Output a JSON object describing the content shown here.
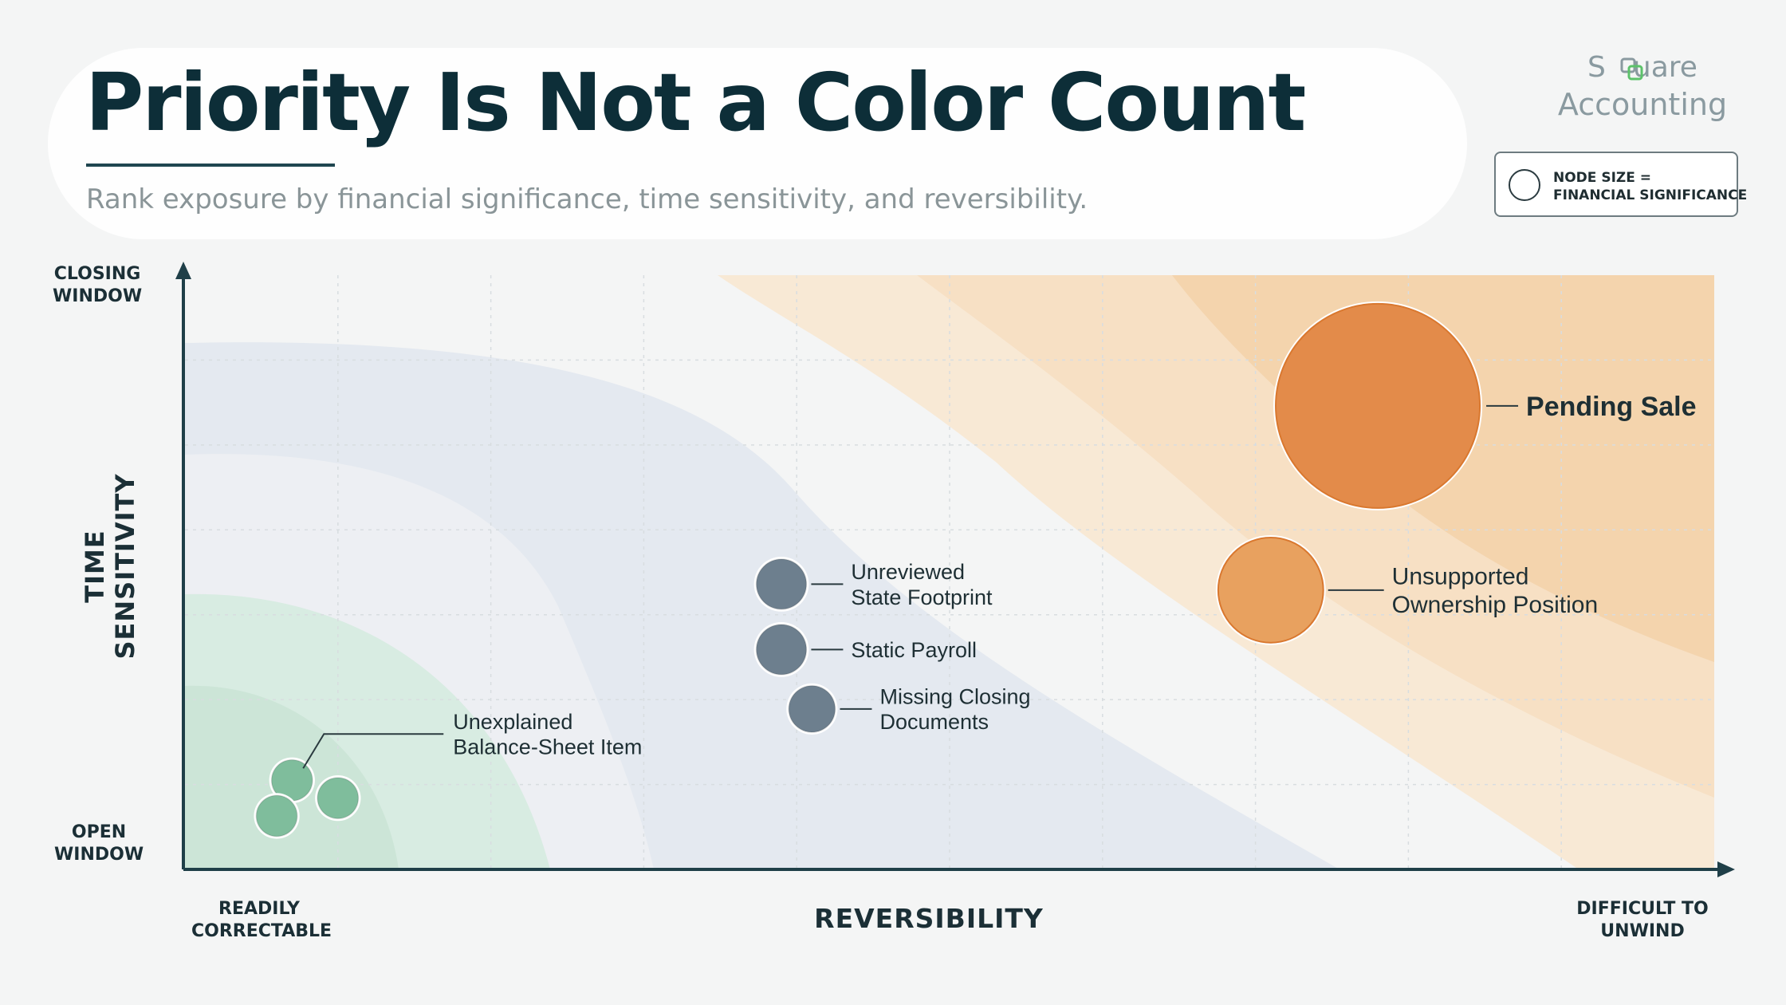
{
  "title": "Priority Is Not a Color Count",
  "subtitle": "Rank exposure by financial significance, time sensitivity, and reversibility.",
  "brand": {
    "line1_pre": "S",
    "line1_post": "uare",
    "line2": "Accounting",
    "icon": "linked-squares-icon"
  },
  "legend": {
    "line1": "NODE SIZE =",
    "line2": "FINANCIAL SIGNIFICANCE",
    "icon": "circle-outline-icon"
  },
  "chart_data": {
    "type": "scatter",
    "title": "",
    "xlabel": "REVERSIBILITY",
    "ylabel": "TIME SENSITIVITY",
    "x_ends": {
      "low": [
        "READILY",
        "CORRECTABLE"
      ],
      "high": [
        "DIFFICULT TO",
        "UNWIND"
      ]
    },
    "y_ends": {
      "low": [
        "OPEN",
        "WINDOW"
      ],
      "high": [
        "CLOSING",
        "WINDOW"
      ]
    },
    "xlim": [
      0,
      10
    ],
    "ylim": [
      0,
      10
    ],
    "grid": true,
    "size_meaning": "financial significance",
    "points": [
      {
        "label": [
          "Pending Sale"
        ],
        "x": 7.8,
        "y": 7.8,
        "size": 10,
        "color": "#e38b4a"
      },
      {
        "label": [
          "Unsupported",
          "Ownership Position"
        ],
        "x": 7.1,
        "y": 4.7,
        "size": 4.6,
        "color": "#e8a15f"
      },
      {
        "label": [
          "Unreviewed",
          "State Footprint"
        ],
        "x": 3.9,
        "y": 4.8,
        "size": 1.6,
        "color": "#6d7f8e"
      },
      {
        "label": [
          "Static Payroll"
        ],
        "x": 3.9,
        "y": 3.7,
        "size": 1.6,
        "color": "#6d7f8e"
      },
      {
        "label": [
          "Missing Closing",
          "Documents"
        ],
        "x": 4.1,
        "y": 2.7,
        "size": 1.4,
        "color": "#6d7f8e"
      },
      {
        "label": [
          "Unexplained",
          "Balance-Sheet Item"
        ],
        "x": 0.7,
        "y": 1.5,
        "size": 1.1,
        "color": "#7fbd9c"
      },
      {
        "label": [],
        "x": 0.6,
        "y": 0.9,
        "size": 1.1,
        "color": "#7fbd9c"
      },
      {
        "label": [],
        "x": 1.0,
        "y": 1.2,
        "size": 1.1,
        "color": "#7fbd9c"
      }
    ],
    "colors": {
      "high": "#e38b4a",
      "medium": "#6d7f8e",
      "low": "#7fbd9c",
      "axis": "#1f3f48"
    }
  }
}
